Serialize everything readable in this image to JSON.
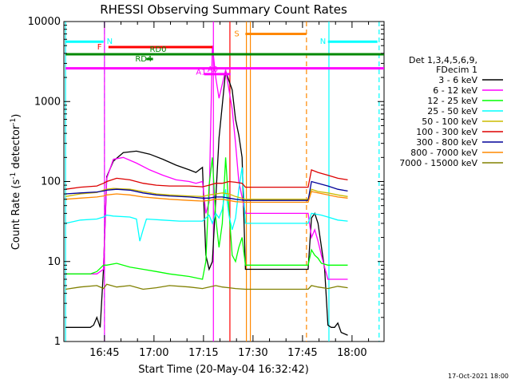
{
  "chart_data": {
    "type": "line",
    "title": "RHESSI Observing Summary Count Rates",
    "xlabel": "Start Time (20-May-04 16:32:42)",
    "ylabel_main": "Count Rate (s",
    "ylabel_exp1": "-1",
    "ylabel_mid": " detector",
    "ylabel_exp2": "-1",
    "ylabel_end": ")",
    "y_scale": "log",
    "ylim": [
      1,
      10000
    ],
    "xlim_minutes": [
      0,
      97
    ],
    "x_ticks": [
      {
        "label": "16:45",
        "minutes": 12.3
      },
      {
        "label": "17:00",
        "minutes": 27.3
      },
      {
        "label": "17:15",
        "minutes": 42.3
      },
      {
        "label": "17:30",
        "minutes": 57.3
      },
      {
        "label": "17:45",
        "minutes": 72.3
      },
      {
        "label": "18:00",
        "minutes": 87.3
      }
    ],
    "y_ticks": [
      {
        "label": "1",
        "value": 1
      },
      {
        "label": "10",
        "value": 10
      },
      {
        "label": "100",
        "value": 100
      },
      {
        "label": "1000",
        "value": 1000
      },
      {
        "label": "10000",
        "value": 10000
      }
    ],
    "legend": {
      "header1": "Det 1,3,4,5,6,9,",
      "header2": "FDecim 1",
      "placement": "right"
    },
    "series": [
      {
        "name": "3 - 6 keV",
        "color": "#000000",
        "points": [
          [
            0.5,
            1.5
          ],
          [
            8,
            1.5
          ],
          [
            9,
            1.6
          ],
          [
            10,
            2
          ],
          [
            11,
            1.5
          ],
          [
            12,
            8
          ],
          [
            13,
            115
          ],
          [
            15,
            180
          ],
          [
            18,
            230
          ],
          [
            22,
            240
          ],
          [
            26,
            220
          ],
          [
            30,
            190
          ],
          [
            34,
            160
          ],
          [
            38,
            140
          ],
          [
            40,
            130
          ],
          [
            41,
            140
          ],
          [
            42,
            150
          ],
          [
            43,
            12
          ],
          [
            44,
            8
          ],
          [
            45,
            10
          ],
          [
            47,
            350
          ],
          [
            49,
            2400
          ],
          [
            51,
            1400
          ],
          [
            52,
            600
          ],
          [
            53,
            380
          ],
          [
            54,
            200
          ],
          [
            55,
            8
          ],
          [
            56,
            8
          ],
          [
            74,
            8
          ],
          [
            75,
            35
          ],
          [
            76,
            40
          ],
          [
            77,
            30
          ],
          [
            79,
            8
          ],
          [
            80,
            1.6
          ],
          [
            81,
            1.5
          ],
          [
            82,
            1.5
          ],
          [
            83,
            1.7
          ],
          [
            84,
            1.3
          ],
          [
            86,
            1.2
          ]
        ]
      },
      {
        "name": "6 - 12 keV",
        "color": "#ff00ff",
        "points": [
          [
            0.5,
            7
          ],
          [
            8,
            7
          ],
          [
            10,
            7
          ],
          [
            12,
            8
          ],
          [
            13,
            110
          ],
          [
            15,
            190
          ],
          [
            18,
            200
          ],
          [
            22,
            170
          ],
          [
            26,
            140
          ],
          [
            30,
            120
          ],
          [
            34,
            105
          ],
          [
            38,
            100
          ],
          [
            40,
            95
          ],
          [
            42,
            100
          ],
          [
            43,
            40
          ],
          [
            44,
            55
          ],
          [
            45,
            5000
          ],
          [
            46,
            2000
          ],
          [
            47,
            1100
          ],
          [
            49,
            2500
          ],
          [
            51,
            800
          ],
          [
            52,
            300
          ],
          [
            53,
            100
          ],
          [
            55,
            40
          ],
          [
            56,
            40
          ],
          [
            74,
            40
          ],
          [
            75,
            20
          ],
          [
            76,
            25
          ],
          [
            77,
            18
          ],
          [
            78,
            12
          ],
          [
            80,
            6
          ],
          [
            86,
            6
          ]
        ]
      },
      {
        "name": "12 - 25 keV",
        "color": "#00ff00",
        "points": [
          [
            0.5,
            7
          ],
          [
            8,
            7
          ],
          [
            10,
            7.5
          ],
          [
            12,
            9
          ],
          [
            13,
            9
          ],
          [
            16,
            9.5
          ],
          [
            20,
            8.5
          ],
          [
            24,
            8
          ],
          [
            28,
            7.5
          ],
          [
            32,
            7
          ],
          [
            38,
            6.5
          ],
          [
            42,
            6
          ],
          [
            43,
            10
          ],
          [
            44,
            90
          ],
          [
            45,
            200
          ],
          [
            46,
            35
          ],
          [
            47,
            15
          ],
          [
            48,
            30
          ],
          [
            49,
            200
          ],
          [
            50,
            45
          ],
          [
            51,
            12
          ],
          [
            52,
            10
          ],
          [
            53,
            15
          ],
          [
            54,
            20
          ],
          [
            55,
            9
          ],
          [
            56,
            9
          ],
          [
            74,
            9
          ],
          [
            75,
            14
          ],
          [
            76,
            12
          ],
          [
            77,
            11
          ],
          [
            78,
            9.5
          ],
          [
            80,
            9
          ],
          [
            86,
            9
          ]
        ]
      },
      {
        "name": "25 - 50 keV",
        "color": "#00ffff",
        "points": [
          [
            0.5,
            30
          ],
          [
            5,
            33
          ],
          [
            10,
            34
          ],
          [
            12,
            36
          ],
          [
            13,
            38
          ],
          [
            15,
            37
          ],
          [
            20,
            36
          ],
          [
            22,
            34
          ],
          [
            23,
            18
          ],
          [
            24,
            25
          ],
          [
            25,
            34
          ],
          [
            30,
            33
          ],
          [
            35,
            32
          ],
          [
            40,
            32
          ],
          [
            42,
            32
          ],
          [
            43,
            35
          ],
          [
            44,
            38
          ],
          [
            45,
            30
          ],
          [
            46,
            40
          ],
          [
            47,
            35
          ],
          [
            48,
            45
          ],
          [
            49,
            80
          ],
          [
            50,
            38
          ],
          [
            51,
            25
          ],
          [
            52,
            35
          ],
          [
            53,
            80
          ],
          [
            54,
            150
          ],
          [
            55,
            30
          ],
          [
            56,
            30
          ],
          [
            74,
            30
          ],
          [
            75,
            40
          ],
          [
            78,
            38
          ],
          [
            80,
            36
          ],
          [
            83,
            33
          ],
          [
            86,
            32
          ]
        ]
      },
      {
        "name": "50 - 100 keV",
        "color": "#ccbb00",
        "points": [
          [
            0.5,
            65
          ],
          [
            5,
            70
          ],
          [
            10,
            73
          ],
          [
            12,
            78
          ],
          [
            13,
            80
          ],
          [
            15,
            82
          ],
          [
            20,
            80
          ],
          [
            24,
            75
          ],
          [
            28,
            70
          ],
          [
            32,
            68
          ],
          [
            38,
            66
          ],
          [
            42,
            65
          ],
          [
            44,
            68
          ],
          [
            46,
            70
          ],
          [
            48,
            72
          ],
          [
            50,
            70
          ],
          [
            52,
            65
          ],
          [
            55,
            60
          ],
          [
            56,
            60
          ],
          [
            74,
            60
          ],
          [
            75,
            80
          ],
          [
            77,
            75
          ],
          [
            80,
            72
          ],
          [
            83,
            68
          ],
          [
            86,
            65
          ]
        ]
      },
      {
        "name": "100 - 300 keV",
        "color": "#dd0000",
        "points": [
          [
            0.5,
            80
          ],
          [
            5,
            85
          ],
          [
            10,
            88
          ],
          [
            12,
            95
          ],
          [
            13,
            100
          ],
          [
            16,
            110
          ],
          [
            20,
            105
          ],
          [
            24,
            95
          ],
          [
            28,
            90
          ],
          [
            32,
            88
          ],
          [
            38,
            88
          ],
          [
            42,
            86
          ],
          [
            44,
            90
          ],
          [
            46,
            95
          ],
          [
            48,
            95
          ],
          [
            50,
            100
          ],
          [
            52,
            98
          ],
          [
            54,
            95
          ],
          [
            55,
            85
          ],
          [
            56,
            85
          ],
          [
            74,
            85
          ],
          [
            75,
            140
          ],
          [
            77,
            130
          ],
          [
            80,
            120
          ],
          [
            83,
            110
          ],
          [
            86,
            105
          ]
        ]
      },
      {
        "name": "300 - 800 keV",
        "color": "#000099",
        "points": [
          [
            0.5,
            70
          ],
          [
            5,
            72
          ],
          [
            10,
            74
          ],
          [
            12,
            76
          ],
          [
            13,
            78
          ],
          [
            16,
            80
          ],
          [
            20,
            78
          ],
          [
            24,
            72
          ],
          [
            28,
            68
          ],
          [
            32,
            66
          ],
          [
            38,
            64
          ],
          [
            42,
            62
          ],
          [
            44,
            62
          ],
          [
            46,
            64
          ],
          [
            48,
            64
          ],
          [
            50,
            62
          ],
          [
            52,
            60
          ],
          [
            55,
            58
          ],
          [
            56,
            58
          ],
          [
            74,
            58
          ],
          [
            75,
            100
          ],
          [
            77,
            95
          ],
          [
            80,
            88
          ],
          [
            83,
            80
          ],
          [
            86,
            76
          ]
        ]
      },
      {
        "name": "800 - 7000 keV",
        "color": "#ff8800",
        "points": [
          [
            0.5,
            60
          ],
          [
            5,
            62
          ],
          [
            10,
            64
          ],
          [
            12,
            66
          ],
          [
            13,
            68
          ],
          [
            16,
            70
          ],
          [
            20,
            68
          ],
          [
            24,
            64
          ],
          [
            28,
            62
          ],
          [
            32,
            60
          ],
          [
            38,
            58
          ],
          [
            42,
            57
          ],
          [
            44,
            58
          ],
          [
            46,
            60
          ],
          [
            48,
            60
          ],
          [
            50,
            58
          ],
          [
            52,
            56
          ],
          [
            55,
            55
          ],
          [
            56,
            55
          ],
          [
            74,
            55
          ],
          [
            75,
            75
          ],
          [
            77,
            72
          ],
          [
            80,
            68
          ],
          [
            83,
            64
          ],
          [
            86,
            62
          ]
        ]
      },
      {
        "name": "7000 - 15000 keV",
        "color": "#808000",
        "points": [
          [
            0.5,
            4.5
          ],
          [
            5,
            4.8
          ],
          [
            10,
            5
          ],
          [
            12,
            4.6
          ],
          [
            13,
            5.2
          ],
          [
            16,
            4.8
          ],
          [
            20,
            5
          ],
          [
            24,
            4.5
          ],
          [
            28,
            4.7
          ],
          [
            32,
            5
          ],
          [
            38,
            4.8
          ],
          [
            42,
            4.6
          ],
          [
            44,
            4.8
          ],
          [
            46,
            5
          ],
          [
            48,
            4.8
          ],
          [
            50,
            4.7
          ],
          [
            52,
            4.6
          ],
          [
            55,
            4.5
          ],
          [
            56,
            4.5
          ],
          [
            74,
            4.5
          ],
          [
            75,
            5
          ],
          [
            77,
            4.8
          ],
          [
            80,
            4.6
          ],
          [
            83,
            4.9
          ],
          [
            86,
            4.7
          ]
        ]
      }
    ],
    "annotations": [
      {
        "label": "N",
        "color": "#00ffff",
        "solid": [
          [
            0.5,
            12
          ]
        ],
        "y": 5600
      },
      {
        "label": "N",
        "color": "#00ffff",
        "solid": [
          [
            80,
            95
          ]
        ],
        "y": 5600
      },
      {
        "label": "F",
        "color": "#ff0000",
        "solid": [
          [
            13.5,
            45
          ]
        ],
        "y": 4800
      },
      {
        "label": "RD0",
        "color": "#008800",
        "solid": [
          [
            0.5,
            97
          ]
        ],
        "y": 3900
      },
      {
        "label": "RD4",
        "color": "#008800",
        "solid": [
          [
            25,
            27
          ]
        ],
        "y": 3400
      },
      {
        "label": "S",
        "color": "#ff8800",
        "solid": [
          [
            55,
            73.5
          ]
        ],
        "y": 7000
      },
      {
        "label": "A1",
        "color": "#ff00ff",
        "solid": [
          [
            0.5,
            97
          ]
        ],
        "y": 2600
      },
      {
        "label": "A0",
        "color": "#ff00ff",
        "solid": [
          [
            42.5,
            50.5
          ]
        ],
        "y": 2200
      }
    ],
    "vertical_markers": [
      {
        "minutes": 0.5,
        "color": "#00ffff",
        "style": "solid"
      },
      {
        "minutes": 12.3,
        "color": "#00ffff",
        "style": "dashed"
      },
      {
        "minutes": 80.3,
        "color": "#00ffff",
        "style": "solid"
      },
      {
        "minutes": 95.5,
        "color": "#00ffff",
        "style": "dashed"
      },
      {
        "minutes": 55.3,
        "color": "#ff8800",
        "style": "solid"
      },
      {
        "minutes": 56.5,
        "color": "#ff8800",
        "style": "solid"
      },
      {
        "minutes": 73.5,
        "color": "#ff8800",
        "style": "dashed"
      },
      {
        "minutes": 12.3,
        "color": "#ff00ff",
        "style": "solid"
      },
      {
        "minutes": 45.3,
        "color": "#ff00ff",
        "style": "solid"
      },
      {
        "minutes": 50.3,
        "color": "#ff0000",
        "style": "solid"
      }
    ],
    "grid": false
  },
  "footer": {
    "timestamp": "17-Oct-2021 18:00"
  }
}
